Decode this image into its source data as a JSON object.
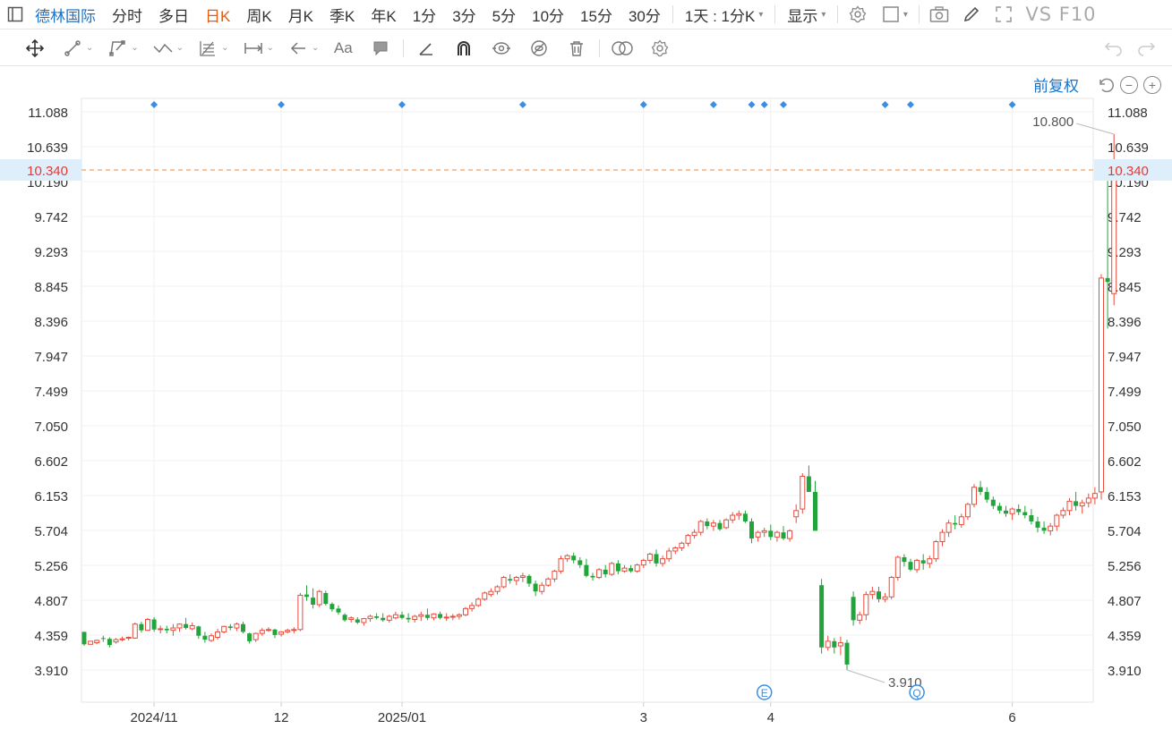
{
  "toolbar": {
    "title": "德林国际",
    "periods": [
      {
        "label": "分时",
        "active": false
      },
      {
        "label": "多日",
        "active": false
      },
      {
        "label": "日K",
        "active": true
      },
      {
        "label": "周K",
        "active": false
      },
      {
        "label": "月K",
        "active": false
      },
      {
        "label": "季K",
        "active": false
      },
      {
        "label": "年K",
        "active": false
      },
      {
        "label": "1分",
        "active": false
      },
      {
        "label": "3分",
        "active": false
      },
      {
        "label": "5分",
        "active": false
      },
      {
        "label": "10分",
        "active": false
      },
      {
        "label": "15分",
        "active": false
      },
      {
        "label": "30分",
        "active": false
      }
    ],
    "multi_period": "1天 : 1分K",
    "display_label": "显示",
    "vs_f10": "VS F10"
  },
  "drawing_tools": [
    "move-icon",
    "line-icon",
    "polyline-icon",
    "wave-icon",
    "fib-icon",
    "measure-icon",
    "arrow-icon",
    "text-icon",
    "comment-icon",
    "ruler-icon",
    "magnet-icon",
    "eye-link-icon",
    "hide-icon",
    "trash-icon",
    "overlay-icon",
    "settings-icon"
  ],
  "price_adjust": "前复权",
  "colors": {
    "up": "#e74c3c",
    "down": "#21a53a",
    "last_price_line": "#f0883e",
    "last_price_text": "#e53935",
    "marker": "#3a8ee6"
  },
  "chart_data": {
    "type": "candlestick",
    "y_ticks": [
      "11.088",
      "10.639",
      "10.190",
      "9.742",
      "9.293",
      "8.845",
      "8.396",
      "7.947",
      "7.499",
      "7.050",
      "6.602",
      "6.153",
      "5.704",
      "5.256",
      "4.807",
      "4.359",
      "3.910"
    ],
    "x_labels": [
      {
        "label": "2024/11",
        "index": 11
      },
      {
        "label": "12",
        "index": 31
      },
      {
        "label": "2025/01",
        "index": 50
      },
      {
        "label": "3",
        "index": 88
      },
      {
        "label": "4",
        "index": 108
      },
      {
        "label": "6",
        "index": 146
      }
    ],
    "last_price": "10.340",
    "max_label": "10.800",
    "min_label": "3.910",
    "event_markers": [
      {
        "index": 107,
        "label": "E"
      },
      {
        "index": 131,
        "label": "Q"
      }
    ],
    "dividend_marker_indices": [
      11,
      31,
      50,
      69,
      88,
      99,
      105,
      107,
      110,
      126,
      130,
      146
    ],
    "ohlc": [
      [
        4.4,
        4.4,
        4.22,
        4.24
      ],
      [
        4.24,
        4.28,
        4.24,
        4.28
      ],
      [
        4.26,
        4.3,
        4.24,
        4.29
      ],
      [
        4.32,
        4.35,
        4.27,
        4.31
      ],
      [
        4.31,
        4.33,
        4.2,
        4.23
      ],
      [
        4.27,
        4.32,
        4.25,
        4.3
      ],
      [
        4.3,
        4.34,
        4.28,
        4.31
      ],
      [
        4.32,
        4.34,
        4.29,
        4.33
      ],
      [
        4.32,
        4.52,
        4.31,
        4.5
      ],
      [
        4.5,
        4.53,
        4.39,
        4.42
      ],
      [
        4.42,
        4.58,
        4.41,
        4.56
      ],
      [
        4.56,
        4.59,
        4.4,
        4.43
      ],
      [
        4.43,
        4.48,
        4.38,
        4.44
      ],
      [
        4.44,
        4.48,
        4.38,
        4.42
      ],
      [
        4.42,
        4.5,
        4.35,
        4.45
      ],
      [
        4.45,
        4.51,
        4.4,
        4.5
      ],
      [
        4.5,
        4.58,
        4.43,
        4.45
      ],
      [
        4.44,
        4.52,
        4.42,
        4.48
      ],
      [
        4.47,
        4.48,
        4.31,
        4.35
      ],
      [
        4.35,
        4.4,
        4.26,
        4.3
      ],
      [
        4.29,
        4.38,
        4.27,
        4.35
      ],
      [
        4.33,
        4.44,
        4.3,
        4.4
      ],
      [
        4.4,
        4.48,
        4.38,
        4.47
      ],
      [
        4.47,
        4.5,
        4.42,
        4.45
      ],
      [
        4.45,
        4.52,
        4.41,
        4.5
      ],
      [
        4.5,
        4.53,
        4.38,
        4.4
      ],
      [
        4.38,
        4.39,
        4.25,
        4.28
      ],
      [
        4.3,
        4.39,
        4.27,
        4.38
      ],
      [
        4.38,
        4.45,
        4.35,
        4.42
      ],
      [
        4.42,
        4.46,
        4.4,
        4.43
      ],
      [
        4.43,
        4.44,
        4.32,
        4.36
      ],
      [
        4.37,
        4.41,
        4.34,
        4.4
      ],
      [
        4.4,
        4.44,
        4.38,
        4.42
      ],
      [
        4.42,
        4.46,
        4.38,
        4.43
      ],
      [
        4.43,
        4.9,
        4.41,
        4.87
      ],
      [
        4.88,
        5.0,
        4.8,
        4.85
      ],
      [
        4.84,
        4.96,
        4.7,
        4.75
      ],
      [
        4.75,
        4.94,
        4.72,
        4.92
      ],
      [
        4.9,
        4.93,
        4.74,
        4.76
      ],
      [
        4.76,
        4.78,
        4.66,
        4.69
      ],
      [
        4.7,
        4.74,
        4.62,
        4.65
      ],
      [
        4.62,
        4.64,
        4.53,
        4.55
      ],
      [
        4.56,
        4.6,
        4.52,
        4.58
      ],
      [
        4.56,
        4.59,
        4.5,
        4.52
      ],
      [
        4.52,
        4.58,
        4.48,
        4.57
      ],
      [
        4.57,
        4.62,
        4.53,
        4.6
      ],
      [
        4.6,
        4.64,
        4.56,
        4.58
      ],
      [
        4.58,
        4.64,
        4.53,
        4.55
      ],
      [
        4.55,
        4.62,
        4.52,
        4.6
      ],
      [
        4.58,
        4.66,
        4.56,
        4.62
      ],
      [
        4.62,
        4.66,
        4.56,
        4.58
      ],
      [
        4.58,
        4.64,
        4.52,
        4.56
      ],
      [
        4.56,
        4.62,
        4.52,
        4.6
      ],
      [
        4.6,
        4.66,
        4.54,
        4.62
      ],
      [
        4.62,
        4.7,
        4.55,
        4.58
      ],
      [
        4.58,
        4.64,
        4.55,
        4.63
      ],
      [
        4.63,
        4.66,
        4.56,
        4.58
      ],
      [
        4.58,
        4.64,
        4.54,
        4.59
      ],
      [
        4.59,
        4.63,
        4.55,
        4.6
      ],
      [
        4.6,
        4.64,
        4.56,
        4.62
      ],
      [
        4.62,
        4.72,
        4.6,
        4.7
      ],
      [
        4.7,
        4.78,
        4.66,
        4.74
      ],
      [
        4.74,
        4.84,
        4.72,
        4.82
      ],
      [
        4.82,
        4.92,
        4.8,
        4.9
      ],
      [
        4.88,
        4.96,
        4.85,
        4.92
      ],
      [
        4.92,
        5.0,
        4.88,
        4.98
      ],
      [
        4.98,
        5.12,
        4.96,
        5.1
      ],
      [
        5.08,
        5.14,
        5.02,
        5.06
      ],
      [
        5.06,
        5.12,
        5.0,
        5.1
      ],
      [
        5.1,
        5.16,
        5.04,
        5.12
      ],
      [
        5.12,
        5.14,
        4.98,
        5.02
      ],
      [
        5.02,
        5.06,
        4.86,
        4.92
      ],
      [
        4.92,
        5.04,
        4.88,
        5.0
      ],
      [
        5.0,
        5.1,
        4.98,
        5.08
      ],
      [
        5.08,
        5.2,
        5.04,
        5.18
      ],
      [
        5.18,
        5.38,
        5.15,
        5.34
      ],
      [
        5.34,
        5.4,
        5.3,
        5.38
      ],
      [
        5.38,
        5.42,
        5.28,
        5.32
      ],
      [
        5.32,
        5.36,
        5.22,
        5.26
      ],
      [
        5.26,
        5.34,
        5.1,
        5.12
      ],
      [
        5.12,
        5.16,
        5.06,
        5.1
      ],
      [
        5.1,
        5.22,
        5.08,
        5.2
      ],
      [
        5.2,
        5.26,
        5.1,
        5.14
      ],
      [
        5.14,
        5.3,
        5.12,
        5.28
      ],
      [
        5.28,
        5.32,
        5.14,
        5.18
      ],
      [
        5.18,
        5.26,
        5.16,
        5.22
      ],
      [
        5.22,
        5.26,
        5.16,
        5.18
      ],
      [
        5.18,
        5.28,
        5.16,
        5.26
      ],
      [
        5.26,
        5.34,
        5.22,
        5.32
      ],
      [
        5.32,
        5.42,
        5.28,
        5.4
      ],
      [
        5.4,
        5.46,
        5.24,
        5.28
      ],
      [
        5.28,
        5.38,
        5.24,
        5.34
      ],
      [
        5.34,
        5.48,
        5.3,
        5.44
      ],
      [
        5.44,
        5.5,
        5.4,
        5.48
      ],
      [
        5.48,
        5.56,
        5.44,
        5.54
      ],
      [
        5.54,
        5.66,
        5.5,
        5.64
      ],
      [
        5.64,
        5.72,
        5.6,
        5.68
      ],
      [
        5.68,
        5.84,
        5.64,
        5.82
      ],
      [
        5.82,
        5.86,
        5.72,
        5.76
      ],
      [
        5.76,
        5.84,
        5.7,
        5.8
      ],
      [
        5.8,
        5.84,
        5.7,
        5.72
      ],
      [
        5.74,
        5.86,
        5.72,
        5.84
      ],
      [
        5.84,
        5.94,
        5.8,
        5.9
      ],
      [
        5.9,
        5.96,
        5.84,
        5.92
      ],
      [
        5.92,
        5.96,
        5.8,
        5.82
      ],
      [
        5.82,
        5.86,
        5.54,
        5.6
      ],
      [
        5.62,
        5.7,
        5.56,
        5.68
      ],
      [
        5.68,
        5.74,
        5.62,
        5.7
      ],
      [
        5.7,
        5.78,
        5.58,
        5.62
      ],
      [
        5.62,
        5.7,
        5.56,
        5.68
      ],
      [
        5.68,
        5.76,
        5.58,
        5.6
      ],
      [
        5.6,
        5.72,
        5.56,
        5.7
      ],
      [
        5.88,
        6.04,
        5.8,
        5.96
      ],
      [
        5.98,
        6.44,
        5.92,
        6.4
      ],
      [
        6.4,
        6.54,
        6.2,
        6.2
      ],
      [
        6.2,
        6.34,
        5.74,
        5.7
      ],
      [
        5.0,
        5.08,
        4.12,
        4.2
      ],
      [
        4.2,
        4.35,
        4.16,
        4.28
      ],
      [
        4.28,
        4.32,
        4.12,
        4.2
      ],
      [
        4.22,
        4.34,
        4.1,
        4.26
      ],
      [
        4.26,
        4.3,
        3.91,
        3.98
      ],
      [
        4.85,
        4.92,
        4.48,
        4.55
      ],
      [
        4.55,
        4.66,
        4.5,
        4.62
      ],
      [
        4.62,
        4.92,
        4.55,
        4.88
      ],
      [
        4.88,
        4.98,
        4.82,
        4.92
      ],
      [
        4.92,
        4.98,
        4.78,
        4.82
      ],
      [
        4.82,
        4.9,
        4.78,
        4.85
      ],
      [
        4.85,
        5.12,
        4.82,
        5.1
      ],
      [
        5.1,
        5.38,
        5.06,
        5.36
      ],
      [
        5.36,
        5.4,
        5.24,
        5.3
      ],
      [
        5.3,
        5.34,
        5.18,
        5.2
      ],
      [
        5.2,
        5.34,
        5.16,
        5.32
      ],
      [
        5.32,
        5.4,
        5.2,
        5.28
      ],
      [
        5.28,
        5.38,
        5.22,
        5.34
      ],
      [
        5.34,
        5.58,
        5.3,
        5.56
      ],
      [
        5.56,
        5.72,
        5.5,
        5.68
      ],
      [
        5.68,
        5.84,
        5.62,
        5.8
      ],
      [
        5.8,
        5.9,
        5.72,
        5.78
      ],
      [
        5.78,
        5.92,
        5.74,
        5.88
      ],
      [
        5.88,
        6.06,
        5.84,
        6.04
      ],
      [
        6.04,
        6.3,
        6.0,
        6.26
      ],
      [
        6.26,
        6.34,
        6.16,
        6.2
      ],
      [
        6.2,
        6.26,
        6.06,
        6.1
      ],
      [
        6.1,
        6.14,
        5.98,
        6.02
      ],
      [
        6.02,
        6.06,
        5.92,
        5.96
      ],
      [
        5.96,
        6.02,
        5.88,
        5.92
      ],
      [
        5.92,
        6.0,
        5.84,
        5.98
      ],
      [
        5.98,
        6.04,
        5.9,
        5.94
      ],
      [
        5.94,
        6.02,
        5.86,
        5.9
      ],
      [
        5.9,
        5.98,
        5.78,
        5.82
      ],
      [
        5.82,
        5.88,
        5.68,
        5.74
      ],
      [
        5.74,
        5.82,
        5.66,
        5.7
      ],
      [
        5.7,
        5.8,
        5.64,
        5.76
      ],
      [
        5.76,
        5.92,
        5.7,
        5.9
      ],
      [
        5.9,
        6.0,
        5.86,
        5.96
      ],
      [
        5.96,
        6.12,
        5.9,
        6.08
      ],
      [
        6.08,
        6.2,
        5.96,
        6.02
      ],
      [
        6.02,
        6.1,
        5.92,
        6.06
      ],
      [
        6.06,
        6.18,
        6.0,
        6.12
      ],
      [
        6.12,
        6.26,
        6.04,
        6.18
      ],
      [
        6.2,
        9.0,
        6.1,
        8.95
      ],
      [
        8.95,
        10.2,
        8.3,
        8.9
      ],
      [
        8.75,
        10.8,
        8.6,
        10.34
      ]
    ]
  }
}
